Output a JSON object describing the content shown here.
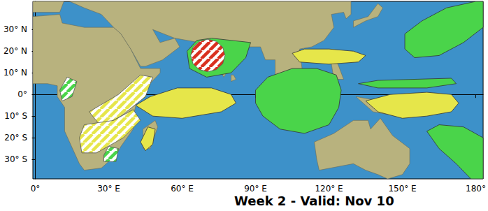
{
  "chart_data": {
    "type": "map",
    "title": "Week 2 - Valid: Nov 10",
    "xlim": [
      -1,
      183
    ],
    "ylim": [
      -39,
      43
    ],
    "xticks": [
      {
        "value": 0,
        "label": "0°"
      },
      {
        "value": 30,
        "label": "30° E"
      },
      {
        "value": 60,
        "label": "60° E"
      },
      {
        "value": 90,
        "label": "90° E"
      },
      {
        "value": 120,
        "label": "120° E"
      },
      {
        "value": 150,
        "label": "150° E"
      },
      {
        "value": 180,
        "label": "180°"
      }
    ],
    "yticks": [
      {
        "value": -30,
        "label": "30° S"
      },
      {
        "value": -20,
        "label": "20° S"
      },
      {
        "value": -10,
        "label": "10° S"
      },
      {
        "value": 0,
        "label": "0°"
      },
      {
        "value": 10,
        "label": "10° N"
      },
      {
        "value": 20,
        "label": "20° N"
      },
      {
        "value": 30,
        "label": "30° N"
      }
    ],
    "grid": false,
    "series": [
      {
        "type": "land",
        "color": "#b8b27e",
        "polygons": [
          [
            [
              -1,
              36
            ],
            [
              10,
              37
            ],
            [
              11,
              33
            ],
            [
              20,
              31
            ],
            [
              32,
              31
            ],
            [
              35,
              28
            ],
            [
              39,
              21
            ],
            [
              43,
              12
            ],
            [
              51,
              12
            ],
            [
              51,
              10
            ],
            [
              42,
              -1
            ],
            [
              40,
              -10
            ],
            [
              40,
              -16
            ],
            [
              35,
              -24
            ],
            [
              33,
              -28
            ],
            [
              27,
              -34
            ],
            [
              20,
              -35
            ],
            [
              18,
              -32
            ],
            [
              12,
              -17
            ],
            [
              12,
              -6
            ],
            [
              9,
              -1
            ],
            [
              9,
              4
            ],
            [
              5,
              5
            ],
            [
              -1,
              5
            ]
          ],
          [
            [
              -1,
              43
            ],
            [
              -1,
              38
            ],
            [
              10,
              38
            ],
            [
              12,
              44
            ],
            [
              20,
              40
            ],
            [
              27,
              37
            ],
            [
              32,
              31
            ],
            [
              35,
              28
            ],
            [
              39,
              21
            ],
            [
              43,
              13
            ],
            [
              45,
              13
            ],
            [
              52,
              16
            ],
            [
              59,
              22
            ],
            [
              57,
              26
            ],
            [
              51,
              24
            ],
            [
              48,
              30
            ],
            [
              57,
              26
            ],
            [
              62,
              25
            ],
            [
              67,
              24
            ],
            [
              70,
              21
            ],
            [
              73,
              17
            ],
            [
              77,
              8
            ],
            [
              80,
              13
            ],
            [
              80,
              16
            ],
            [
              87,
              22
            ],
            [
              92,
              22
            ],
            [
              94,
              16
            ],
            [
              98,
              16
            ],
            [
              98,
              8
            ],
            [
              101,
              3
            ],
            [
              104,
              1
            ],
            [
              103,
              10
            ],
            [
              106,
              10
            ],
            [
              109,
              12
            ],
            [
              108,
              21
            ],
            [
              113,
              22
            ],
            [
              118,
              25
            ],
            [
              122,
              31
            ],
            [
              121,
              37
            ],
            [
              126,
              38
            ],
            [
              127,
              35
            ],
            [
              129,
              37
            ],
            [
              129,
              43
            ]
          ],
          [
            [
              80,
              6
            ],
            [
              82,
              7
            ],
            [
              81,
              9
            ],
            [
              80,
              9
            ]
          ],
          [
            [
              130,
              31
            ],
            [
              135,
              34
            ],
            [
              140,
              36
            ],
            [
              142,
              40
            ],
            [
              140,
              42
            ],
            [
              136,
              36
            ],
            [
              130,
              34
            ]
          ],
          [
            [
              120,
              18
            ],
            [
              122,
              18
            ],
            [
              124,
              13
            ],
            [
              126,
              7
            ],
            [
              122,
              7
            ],
            [
              121,
              14
            ]
          ],
          [
            [
              109,
              2
            ],
            [
              112,
              -3
            ],
            [
              116,
              -4
            ],
            [
              119,
              1
            ],
            [
              117,
              7
            ],
            [
              114,
              4
            ]
          ],
          [
            [
              95,
              5
            ],
            [
              98,
              4
            ],
            [
              106,
              -6
            ],
            [
              102,
              -4
            ]
          ],
          [
            [
              105,
              -6
            ],
            [
              114,
              -8
            ],
            [
              114,
              -9
            ],
            [
              106,
              -7
            ]
          ],
          [
            [
              119,
              -5
            ],
            [
              121,
              1
            ],
            [
              125,
              1
            ],
            [
              121,
              -1
            ],
            [
              122,
              -5
            ]
          ],
          [
            [
              131,
              -1
            ],
            [
              141,
              -3
            ],
            [
              150,
              -10
            ],
            [
              143,
              -9
            ],
            [
              138,
              -8
            ]
          ],
          [
            [
              114,
              -22
            ],
            [
              122,
              -18
            ],
            [
              130,
              -12
            ],
            [
              136,
              -12
            ],
            [
              137,
              -16
            ],
            [
              141,
              -11
            ],
            [
              146,
              -19
            ],
            [
              153,
              -25
            ],
            [
              153,
              -32
            ],
            [
              150,
              -37
            ],
            [
              144,
              -39
            ],
            [
              140,
              -37
            ],
            [
              135,
              -35
            ],
            [
              130,
              -32
            ],
            [
              116,
              -35
            ],
            [
              115,
              -30
            ]
          ],
          [
            [
              44,
              -25
            ],
            [
              47,
              -25
            ],
            [
              50,
              -15
            ],
            [
              49,
              -12
            ],
            [
              44,
              -16
            ]
          ]
        ]
      },
      {
        "type": "filled",
        "color": "#4ad44a",
        "polygons": [
          [
            [
              62,
              20
            ],
            [
              66,
              25
            ],
            [
              72,
              26
            ],
            [
              80,
              25
            ],
            [
              88,
              24
            ],
            [
              86,
              17
            ],
            [
              80,
              10
            ],
            [
              70,
              8
            ],
            [
              63,
              12
            ]
          ],
          [
            [
              90,
              2
            ],
            [
              95,
              8
            ],
            [
              105,
              12
            ],
            [
              115,
              12
            ],
            [
              123,
              9
            ],
            [
              125,
              2
            ],
            [
              124,
              -6
            ],
            [
              120,
              -14
            ],
            [
              110,
              -18
            ],
            [
              100,
              -16
            ],
            [
              93,
              -10
            ],
            [
              90,
              -4
            ]
          ],
          [
            [
              151,
              28
            ],
            [
              158,
              34
            ],
            [
              168,
              40
            ],
            [
              180,
              43
            ],
            [
              183,
              43
            ],
            [
              183,
              31
            ],
            [
              175,
              24
            ],
            [
              165,
              18
            ],
            [
              155,
              17
            ],
            [
              151,
              21
            ]
          ],
          [
            [
              132,
              5
            ],
            [
              140,
              6.5
            ],
            [
              155,
              7
            ],
            [
              170,
              7.5
            ],
            [
              172,
              5
            ],
            [
              160,
              3
            ],
            [
              140,
              3
            ]
          ],
          [
            [
              160,
              -17
            ],
            [
              165,
              -14
            ],
            [
              175,
              -15
            ],
            [
              183,
              -20
            ],
            [
              183,
              -39
            ],
            [
              178,
              -39
            ],
            [
              172,
              -32
            ],
            [
              165,
              -25
            ]
          ]
        ]
      },
      {
        "type": "filled",
        "color": "#e6e64a",
        "polygons": [
          [
            [
              105,
              19
            ],
            [
              110,
              21
            ],
            [
              120,
              21
            ],
            [
              130,
              20
            ],
            [
              135,
              18
            ],
            [
              132,
              15
            ],
            [
              120,
              14
            ],
            [
              108,
              15
            ]
          ],
          [
            [
              41,
              -5
            ],
            [
              47,
              -1
            ],
            [
              58,
              3
            ],
            [
              72,
              3
            ],
            [
              80,
              0
            ],
            [
              82,
              -4
            ],
            [
              76,
              -8
            ],
            [
              60,
              -11
            ],
            [
              48,
              -10
            ]
          ],
          [
            [
              135,
              -3
            ],
            [
              145,
              0
            ],
            [
              160,
              1
            ],
            [
              170,
              0
            ],
            [
              173,
              -4
            ],
            [
              170,
              -8
            ],
            [
              160,
              -10
            ],
            [
              150,
              -11
            ],
            [
              140,
              -8
            ]
          ],
          [
            [
              43,
              -22
            ],
            [
              46,
              -15
            ],
            [
              49,
              -16
            ],
            [
              48,
              -23
            ],
            [
              45,
              -26
            ]
          ]
        ]
      },
      {
        "type": "hatched",
        "color": "#e6e64a",
        "polygons": [
          [
            [
              27,
              -15
            ],
            [
              22,
              -8
            ],
            [
              34,
              0
            ],
            [
              43,
              9
            ],
            [
              48,
              8
            ],
            [
              45,
              -1
            ],
            [
              35,
              -10
            ]
          ],
          [
            [
              18,
              -20
            ],
            [
              20,
              -14
            ],
            [
              32,
              -12
            ],
            [
              40,
              -7
            ],
            [
              43,
              -12
            ],
            [
              36,
              -20
            ],
            [
              25,
              -27
            ],
            [
              19,
              -27
            ]
          ]
        ]
      },
      {
        "type": "hatched",
        "color": "#4ad44a",
        "polygons": [
          [
            [
              10,
              2
            ],
            [
              13,
              8
            ],
            [
              17,
              6
            ],
            [
              15,
              -1
            ],
            [
              11,
              -3
            ]
          ],
          [
            [
              28,
              -28
            ],
            [
              30,
              -24
            ],
            [
              34,
              -25
            ],
            [
              33,
              -31
            ],
            [
              28,
              -31
            ]
          ]
        ]
      },
      {
        "type": "hatched",
        "color": "#d9301f",
        "polygons": [
          [
            [
              77.5,
              18
            ],
            [
              76.6,
              21.75
            ],
            [
              74,
              24.5
            ],
            [
              70.5,
              25.5
            ],
            [
              67,
              24.5
            ],
            [
              64.4,
              21.75
            ],
            [
              63.5,
              18
            ],
            [
              64.4,
              14.25
            ],
            [
              67,
              11.5
            ],
            [
              70.5,
              10.5
            ],
            [
              74,
              11.5
            ],
            [
              76.6,
              14.25
            ]
          ]
        ]
      }
    ]
  }
}
